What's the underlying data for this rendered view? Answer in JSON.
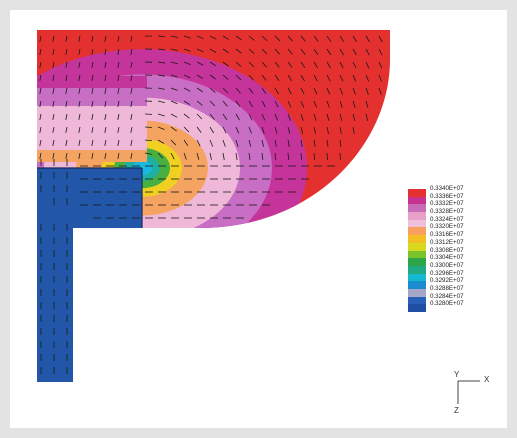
{
  "legend": {
    "colors": [
      "#e53030",
      "#c9318e",
      "#c76bb9",
      "#e8a0c8",
      "#f0c0d8",
      "#f7a060",
      "#f2c024",
      "#d8d81e",
      "#7cc42e",
      "#2da548",
      "#21a884",
      "#14b8d0",
      "#1a8cd0",
      "#a6a6c8",
      "#2860b8",
      "#1f4fa3"
    ],
    "labels": [
      "0.3340E+07",
      "0.3336E+07",
      "0.3332E+07",
      "0.3328E+07",
      "0.3324E+07",
      "0.3320E+07",
      "0.3316E+07",
      "0.3312E+07",
      "0.3308E+07",
      "0.3304E+07",
      "0.3300E+07",
      "0.3296E+07",
      "0.3292E+07",
      "0.3288E+07",
      "0.3284E+07",
      "0.3280E+07"
    ]
  },
  "axes": {
    "x_label": "X",
    "y_label": "Y",
    "z_label": "Z"
  },
  "palette": {
    "region_top": "#e53030",
    "band_magenta": "#c4349a",
    "band_purple": "#c86ec4",
    "band_pink": "#f0b8d8",
    "band_orange": "#f4a460",
    "band_yellow": "#f0d020",
    "band_green": "#48b040",
    "band_teal": "#20b0a0",
    "band_cyan": "#18b8e0",
    "region_bottom": "#2256a8"
  }
}
